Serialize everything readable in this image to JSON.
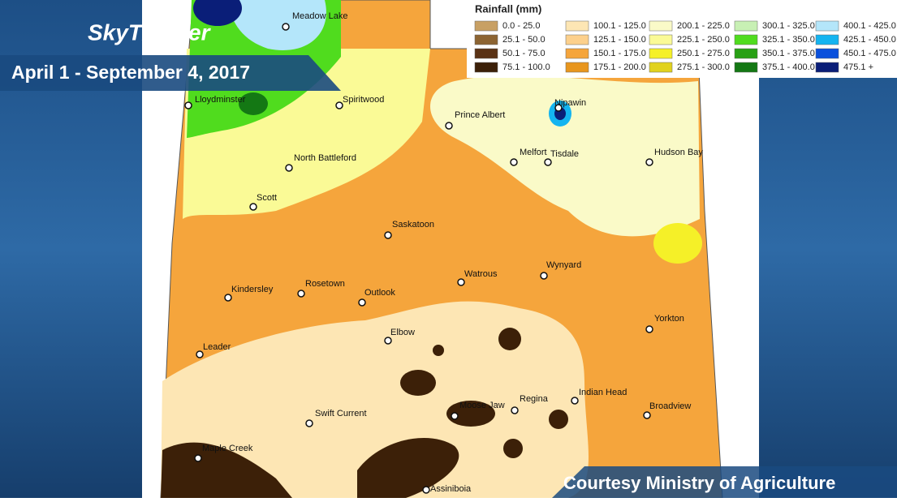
{
  "brand": "SkyTracker",
  "date_banner": "April 1 - September 4, 2017",
  "credit": "Courtesy Ministry of Agriculture",
  "legend": {
    "title": "Rainfall (mm)",
    "items": [
      {
        "label": "0.0 -  25.0",
        "color": "#c8a064"
      },
      {
        "label": "25.1 -  50.0",
        "color": "#8c6432"
      },
      {
        "label": "50.1 -  75.0",
        "color": "#5a3214"
      },
      {
        "label": "75.1 - 100.0",
        "color": "#3c2008"
      },
      {
        "label": "100.1 - 125.0",
        "color": "#fde6b4"
      },
      {
        "label": "125.1 - 150.0",
        "color": "#fcd08c"
      },
      {
        "label": "150.1 - 175.0",
        "color": "#f5a53c"
      },
      {
        "label": "175.1 - 200.0",
        "color": "#e8961e"
      },
      {
        "label": "200.1 - 225.0",
        "color": "#fafac8"
      },
      {
        "label": "225.1 - 250.0",
        "color": "#fafa96"
      },
      {
        "label": "250.1 - 275.0",
        "color": "#f5f028"
      },
      {
        "label": "275.1 - 300.0",
        "color": "#e1d21e"
      },
      {
        "label": "300.1 - 325.0",
        "color": "#c8f0b4"
      },
      {
        "label": "325.1 - 350.0",
        "color": "#50dc1e"
      },
      {
        "label": "350.1 - 375.0",
        "color": "#28a014"
      },
      {
        "label": "375.1 - 400.0",
        "color": "#147814"
      },
      {
        "label": "400.1 - 425.0",
        "color": "#b4e6fa"
      },
      {
        "label": "425.1 - 450.0",
        "color": "#14b4f0"
      },
      {
        "label": "450.1 - 475.0",
        "color": "#0a50dc"
      },
      {
        "label": "475.1 +",
        "color": "#0a1e78"
      }
    ]
  },
  "cities": [
    "Meadow Lake",
    "Lloydminster",
    "Spiritwood",
    "Prince Albert",
    "Nipawin",
    "Melfort",
    "Tisdale",
    "Hudson Bay",
    "North Battleford",
    "Scott",
    "Saskatoon",
    "Wynyard",
    "Watrous",
    "Kindersley",
    "Rosetown",
    "Outlook",
    "Yorkton",
    "Elbow",
    "Leader",
    "Indian Head",
    "Regina",
    "Broadview",
    "Moose Jaw",
    "Swift Current",
    "Maple Creek",
    "Assiniboia"
  ]
}
